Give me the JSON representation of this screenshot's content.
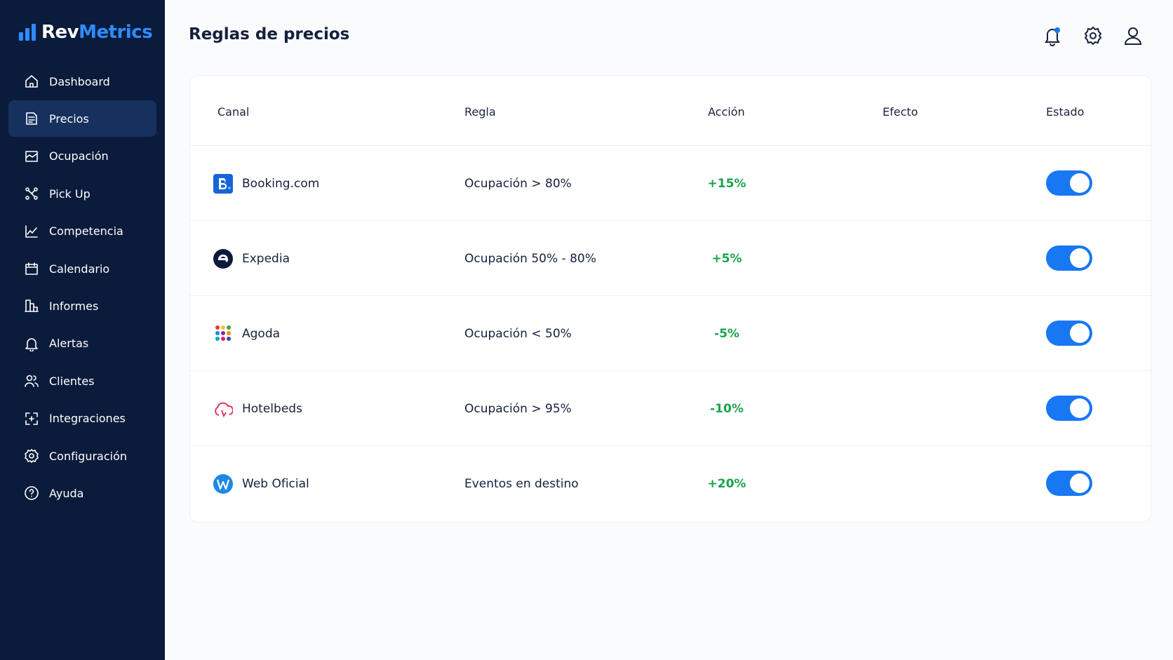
{
  "brand": {
    "prefix": "Rev",
    "suffix": "Metrics"
  },
  "nav": [
    {
      "label": "Dashboard",
      "active": false
    },
    {
      "label": "Precios",
      "active": true
    },
    {
      "label": "Ocupación",
      "active": false
    },
    {
      "label": "Pick Up",
      "active": false
    },
    {
      "label": "Competencia",
      "active": false
    },
    {
      "label": "Calendario",
      "active": false
    },
    {
      "label": "Informes",
      "active": false
    },
    {
      "label": "Alertas",
      "active": false
    },
    {
      "label": "Clientes",
      "active": false
    },
    {
      "label": "Integraciones",
      "active": false
    },
    {
      "label": "Configuración",
      "active": false
    },
    {
      "label": "Ayuda",
      "active": false
    }
  ],
  "header": {
    "title": "Reglas de precios"
  },
  "table": {
    "columns": [
      "Canal",
      "Regla",
      "Acción",
      "Efecto",
      "Estado"
    ],
    "rows": [
      {
        "channel": "Booking.com",
        "rule": "Ocupación > 80%",
        "action": "+15%",
        "enabled": true
      },
      {
        "channel": "Expedia",
        "rule": "Ocupación 50% - 80%",
        "action": "+5%",
        "enabled": true
      },
      {
        "channel": "Agoda",
        "rule": "Ocupación < 50%",
        "action": "-5%",
        "enabled": true
      },
      {
        "channel": "Hotelbeds",
        "rule": "Ocupación > 95%",
        "action": "-10%",
        "enabled": true
      },
      {
        "channel": "Web Oficial",
        "rule": "Eventos en destino",
        "action": "+20%",
        "enabled": true
      }
    ]
  }
}
